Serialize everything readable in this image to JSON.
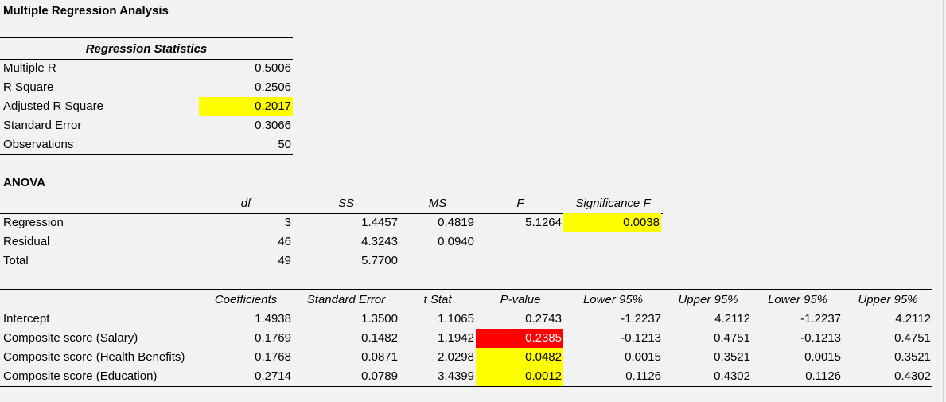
{
  "title": "Multiple Regression Analysis",
  "regression_statistics": {
    "header": "Regression Statistics",
    "rows": [
      {
        "label": "Multiple R",
        "value": "0.5006"
      },
      {
        "label": "R Square",
        "value": "0.2506"
      },
      {
        "label": "Adjusted R Square",
        "value": "0.2017",
        "highlight": "yellow"
      },
      {
        "label": "Standard Error",
        "value": "0.3066"
      },
      {
        "label": "Observations",
        "value": "50"
      }
    ]
  },
  "anova": {
    "title": "ANOVA",
    "headers": [
      "df",
      "SS",
      "MS",
      "F",
      "Significance F"
    ],
    "rows": [
      {
        "label": "Regression",
        "df": "3",
        "ss": "1.4457",
        "ms": "0.4819",
        "f": "5.1264",
        "sig_f": "0.0038"
      },
      {
        "label": "Residual",
        "df": "46",
        "ss": "4.3243",
        "ms": "0.0940",
        "f": "",
        "sig_f": ""
      },
      {
        "label": "Total",
        "df": "49",
        "ss": "5.7700",
        "ms": "",
        "f": "",
        "sig_f": ""
      }
    ]
  },
  "coefficients": {
    "headers": [
      "Coefficients",
      "Standard Error",
      "t Stat",
      "P-value",
      "Lower 95%",
      "Upper 95%",
      "Lower 95%",
      "Upper 95%"
    ],
    "rows": [
      {
        "label": "Intercept",
        "values": [
          "1.4938",
          "1.3500",
          "1.1065",
          "0.2743",
          "-1.2237",
          "4.2112",
          "-1.2237",
          "4.2112"
        ]
      },
      {
        "label": "Composite score (Salary)",
        "values": [
          "0.1769",
          "0.1482",
          "1.1942",
          "0.2385",
          "-0.1213",
          "0.4751",
          "-0.1213",
          "0.4751"
        ]
      },
      {
        "label": "Composite score (Health Benefits)",
        "values": [
          "0.1768",
          "0.0871",
          "2.0298",
          "0.0482",
          "0.0015",
          "0.3521",
          "0.0015",
          "0.3521"
        ]
      },
      {
        "label": "Composite score (Education)",
        "values": [
          "0.2714",
          "0.0789",
          "3.4399",
          "0.0012",
          "0.1126",
          "0.4302",
          "0.1126",
          "0.4302"
        ]
      }
    ]
  },
  "colors": {
    "highlight_yellow": "#ffff00",
    "highlight_red": "#ff0000"
  }
}
